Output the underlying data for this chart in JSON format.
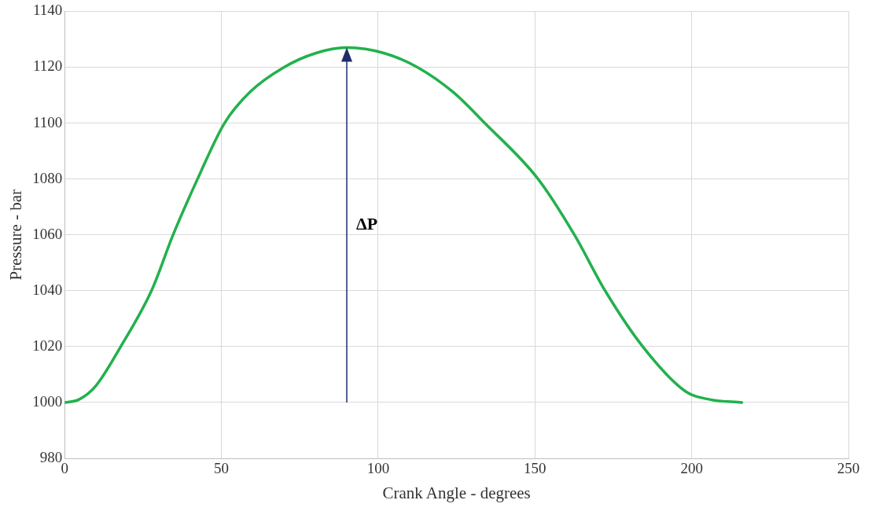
{
  "chart_data": {
    "type": "line",
    "xlabel": "Crank Angle - degrees",
    "ylabel": "Pressure - bar",
    "x": [
      0,
      4.5,
      10,
      17.9,
      27.7,
      34.6,
      42.4,
      51,
      59,
      70,
      80,
      90,
      102,
      112.5,
      124,
      134,
      151,
      162.6,
      172.4,
      184.4,
      198,
      206,
      216
    ],
    "series": [
      {
        "color": "#22b14c",
        "values": [
          1000,
          1001,
          1006,
          1020,
          1040,
          1060,
          1080,
          1100,
          1111,
          1120,
          1125,
          1127,
          1125,
          1120,
          1111,
          1100,
          1080,
          1060,
          1040,
          1020,
          1004,
          1001,
          1000
        ]
      }
    ],
    "xlim": [
      0,
      250
    ],
    "xticks": [
      0,
      50,
      100,
      150,
      200,
      250
    ],
    "ylim": [
      980,
      1140
    ],
    "yticks": [
      980,
      1000,
      1020,
      1040,
      1060,
      1080,
      1100,
      1120,
      1140
    ],
    "grid": true,
    "legend": false,
    "marker": "none",
    "line_style": "solid",
    "annotations": [
      "ΔP"
    ]
  }
}
